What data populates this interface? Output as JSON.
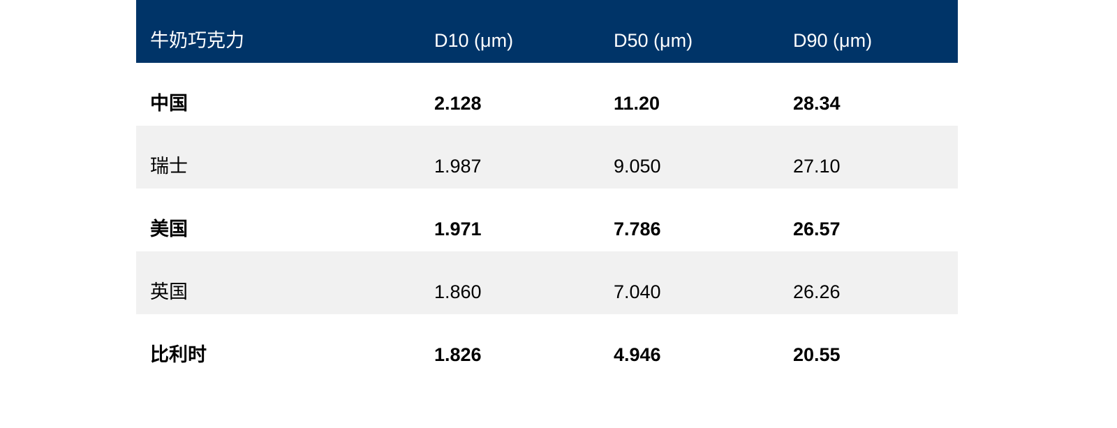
{
  "table": {
    "header": [
      "牛奶巧克力",
      "D10 (μm)",
      "D50 (μm)",
      "D90 (μm)"
    ],
    "rows": [
      [
        "中国",
        "2.128",
        "11.20",
        "28.34"
      ],
      [
        "瑞士",
        "1.987",
        "9.050",
        "27.10"
      ],
      [
        "美国",
        "1.971",
        "7.786",
        "26.57"
      ],
      [
        "英国",
        "1.860",
        "7.040",
        "26.26"
      ],
      [
        "比利时",
        "1.826",
        "4.946",
        "20.55"
      ]
    ]
  }
}
